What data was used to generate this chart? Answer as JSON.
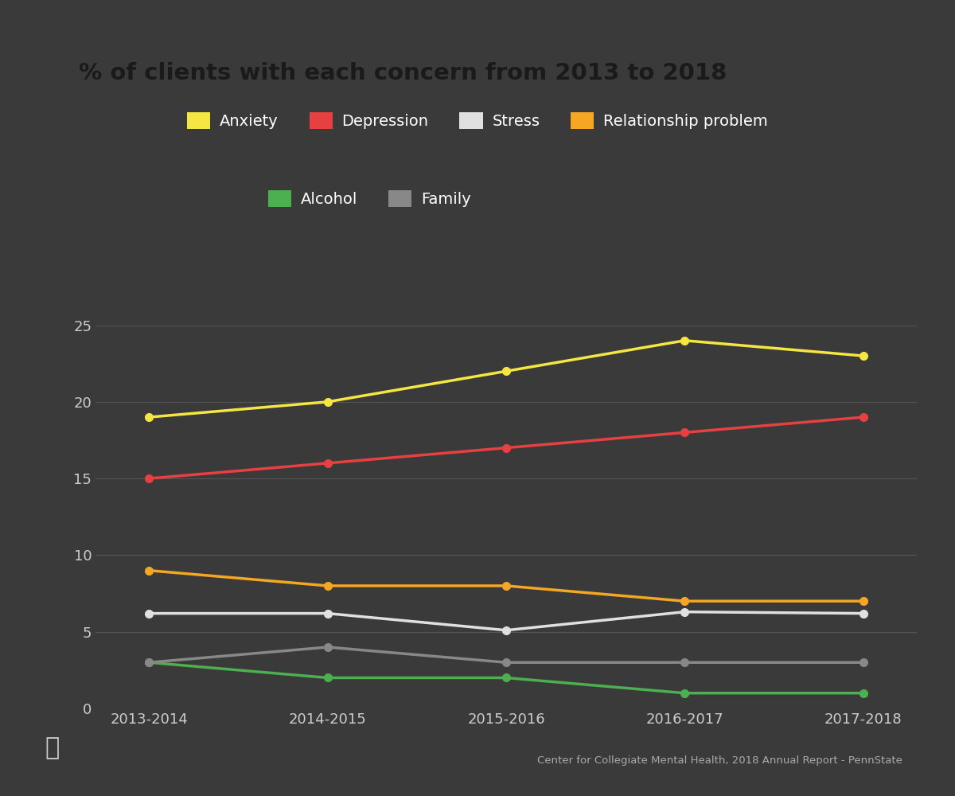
{
  "title": "% of clients with each concern from 2013 to 2018",
  "background_color": "#3a3a3a",
  "title_bg_color": "#f5e642",
  "title_text_color": "#1a1a1a",
  "x_labels": [
    "2013-2014",
    "2014-2015",
    "2015-2016",
    "2016-2017",
    "2017-2018"
  ],
  "x_values": [
    0,
    1,
    2,
    3,
    4
  ],
  "ylim": [
    0,
    27
  ],
  "yticks": [
    0,
    5,
    10,
    15,
    20,
    25
  ],
  "series": [
    {
      "label": "Anxiety",
      "color": "#f5e642",
      "values": [
        19.0,
        20.0,
        22.0,
        24.0,
        23.0
      ]
    },
    {
      "label": "Depression",
      "color": "#e84040",
      "values": [
        15.0,
        16.0,
        17.0,
        18.0,
        19.0
      ]
    },
    {
      "label": "Stress",
      "color": "#e0e0e0",
      "values": [
        6.2,
        6.2,
        5.1,
        6.3,
        6.2
      ]
    },
    {
      "label": "Relationship problem",
      "color": "#f5a623",
      "values": [
        9.0,
        8.0,
        8.0,
        7.0,
        7.0
      ]
    },
    {
      "label": "Alcohol",
      "color": "#4caf50",
      "values": [
        3.0,
        2.0,
        2.0,
        1.0,
        1.0
      ]
    },
    {
      "label": "Family",
      "color": "#888888",
      "values": [
        3.0,
        4.0,
        3.0,
        3.0,
        3.0
      ]
    }
  ],
  "grid_color": "#555555",
  "tick_color": "#cccccc",
  "legend_text_color": "#ffffff",
  "source_text": "Center for Collegiate Mental Health, 2018 Annual Report - PennState",
  "source_text_color": "#aaaaaa",
  "line_width": 2.5,
  "marker_size": 7,
  "legend_row1": [
    0,
    1,
    2,
    3
  ],
  "legend_row2": [
    4,
    5
  ]
}
